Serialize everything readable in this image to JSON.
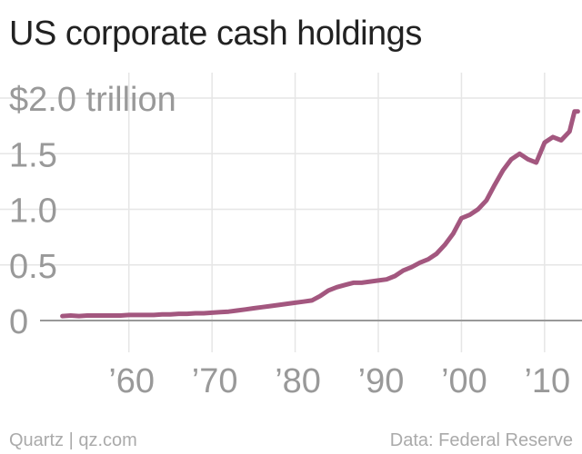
{
  "chart_data": {
    "type": "line",
    "title": "US corporate cash holdings",
    "xlabel": "",
    "ylabel": "",
    "y_ticks": [
      {
        "value": 0,
        "label": "0"
      },
      {
        "value": 0.5,
        "label": "0.5"
      },
      {
        "value": 1.0,
        "label": "1.0"
      },
      {
        "value": 1.5,
        "label": "1.5"
      },
      {
        "value": 2.0,
        "label": "$2.0 trillion"
      }
    ],
    "x_ticks": [
      {
        "value": 1960,
        "label": "’60"
      },
      {
        "value": 1970,
        "label": "’70"
      },
      {
        "value": 1980,
        "label": "’80"
      },
      {
        "value": 1990,
        "label": "’90"
      },
      {
        "value": 2000,
        "label": "’00"
      },
      {
        "value": 2010,
        "label": "’10"
      }
    ],
    "xlim": [
      1944.5,
      2014.5
    ],
    "ylim": [
      0,
      2.0
    ],
    "grid": true,
    "color": "#a3577f",
    "series": [
      {
        "name": "",
        "x": [
          1952,
          1953,
          1954,
          1955,
          1956,
          1957,
          1958,
          1959,
          1960,
          1961,
          1962,
          1963,
          1964,
          1965,
          1966,
          1967,
          1968,
          1969,
          1970,
          1971,
          1972,
          1973,
          1974,
          1975,
          1976,
          1977,
          1978,
          1979,
          1980,
          1981,
          1982,
          1983,
          1984,
          1985,
          1986,
          1987,
          1988,
          1989,
          1990,
          1991,
          1992,
          1993,
          1994,
          1995,
          1996,
          1997,
          1998,
          1999,
          2000,
          2001,
          2002,
          2003,
          2004,
          2005,
          2006,
          2007,
          2008,
          2009,
          2010,
          2011,
          2012,
          2013,
          2013.6,
          2014
        ],
        "y": [
          0.04,
          0.045,
          0.04,
          0.045,
          0.045,
          0.045,
          0.045,
          0.045,
          0.05,
          0.05,
          0.05,
          0.05,
          0.055,
          0.055,
          0.06,
          0.06,
          0.065,
          0.065,
          0.07,
          0.075,
          0.08,
          0.09,
          0.1,
          0.11,
          0.12,
          0.13,
          0.14,
          0.15,
          0.16,
          0.17,
          0.18,
          0.22,
          0.27,
          0.3,
          0.32,
          0.34,
          0.34,
          0.35,
          0.36,
          0.37,
          0.4,
          0.45,
          0.48,
          0.52,
          0.55,
          0.6,
          0.68,
          0.78,
          0.92,
          0.95,
          1.0,
          1.08,
          1.22,
          1.35,
          1.45,
          1.5,
          1.45,
          1.42,
          1.6,
          1.65,
          1.62,
          1.7,
          1.88,
          1.88
        ]
      }
    ]
  },
  "footer": {
    "source_left": "Quartz | qz.com",
    "source_right": "Data: Federal Reserve"
  }
}
